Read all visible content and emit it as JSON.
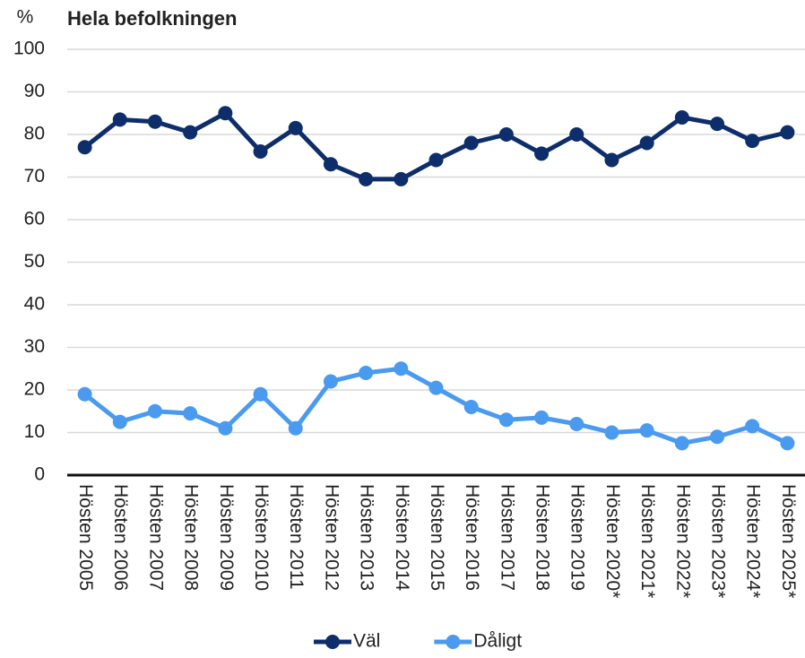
{
  "chart_data": {
    "type": "line",
    "title": "Hela befolkningen",
    "y_label": "%",
    "categories": [
      "Hösten 2005",
      "Hösten 2006",
      "Hösten 2007",
      "Hösten 2008",
      "Hösten 2009",
      "Hösten 2010",
      "Hösten 2011",
      "Hösten 2012",
      "Hösten 2013",
      "Hösten 2014",
      "Hösten 2015",
      "Hösten 2016",
      "Hösten 2017",
      "Hösten 2018",
      "Hösten 2019",
      "Hösten 2020*",
      "Hösten 2021*",
      "Hösten 2022*",
      "Hösten 2023*",
      "Hösten 2024*",
      "Hösten 2025*"
    ],
    "series": [
      {
        "name": "Väl",
        "color": "#0d2d6b",
        "values": [
          77,
          83.5,
          83,
          80.5,
          85,
          76,
          81.5,
          73,
          69.5,
          69.5,
          74,
          78,
          80,
          75.5,
          80,
          74,
          78,
          84,
          82.5,
          78.5,
          80.5
        ]
      },
      {
        "name": "Dåligt",
        "color": "#4a9af0",
        "values": [
          19,
          12.5,
          15,
          14.5,
          11,
          19,
          11,
          22,
          24,
          25,
          20.5,
          16,
          13,
          13.5,
          12,
          10,
          10.5,
          7.5,
          9,
          11.5,
          7.5
        ]
      }
    ],
    "ylim": [
      0,
      100
    ],
    "yticks": [
      0,
      10,
      20,
      30,
      40,
      50,
      60,
      70,
      80,
      90,
      100
    ],
    "grid": true,
    "legend": "bottom"
  }
}
